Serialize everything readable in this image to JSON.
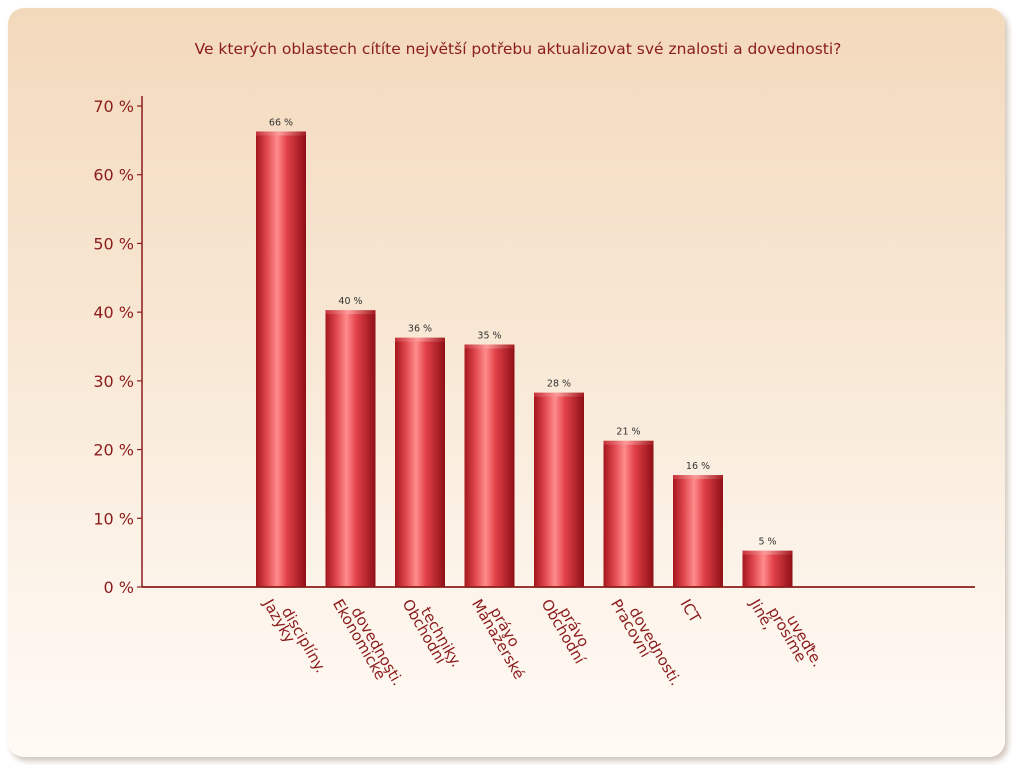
{
  "colors": {
    "bar_light": "#ff8a8a",
    "bar_mid": "#d8333a",
    "bar_dark": "#8e0f16",
    "axis": "#8b1c1c",
    "text": "#8b1c1c",
    "data_label": "#333333"
  },
  "chart_data": {
    "type": "bar",
    "title": "Ve kterých oblastech cítíte největší potřebu aktualizovat své znalosti a dovednosti?",
    "xlabel": "",
    "ylabel": "",
    "ylim": [
      0,
      70
    ],
    "yticks": [
      0,
      10,
      20,
      30,
      40,
      50,
      60,
      70
    ],
    "ytick_labels": [
      "0 %",
      "10 %",
      "20 %",
      "30 %",
      "40 %",
      "50 %",
      "60 %",
      "70 %"
    ],
    "grid": false,
    "legend": "none",
    "categories": [
      [
        "Jazyky",
        "disciplíny."
      ],
      [
        "Ekonomické",
        "dovednosti."
      ],
      [
        "Obchodní",
        "techniky."
      ],
      [
        "Manažerské",
        "právo"
      ],
      [
        "Obchodní",
        "právo"
      ],
      [
        "Pracovní",
        "dovednosti."
      ],
      [
        "ICT"
      ],
      [
        "Jiné,",
        "prosíme",
        "uveďte."
      ]
    ],
    "values": [
      66,
      40,
      36,
      35,
      28,
      21,
      16,
      5
    ],
    "data_labels": [
      "66 %",
      "40 %",
      "36 %",
      "35 %",
      "28 %",
      "21 %",
      "16 %",
      "5 %"
    ]
  }
}
